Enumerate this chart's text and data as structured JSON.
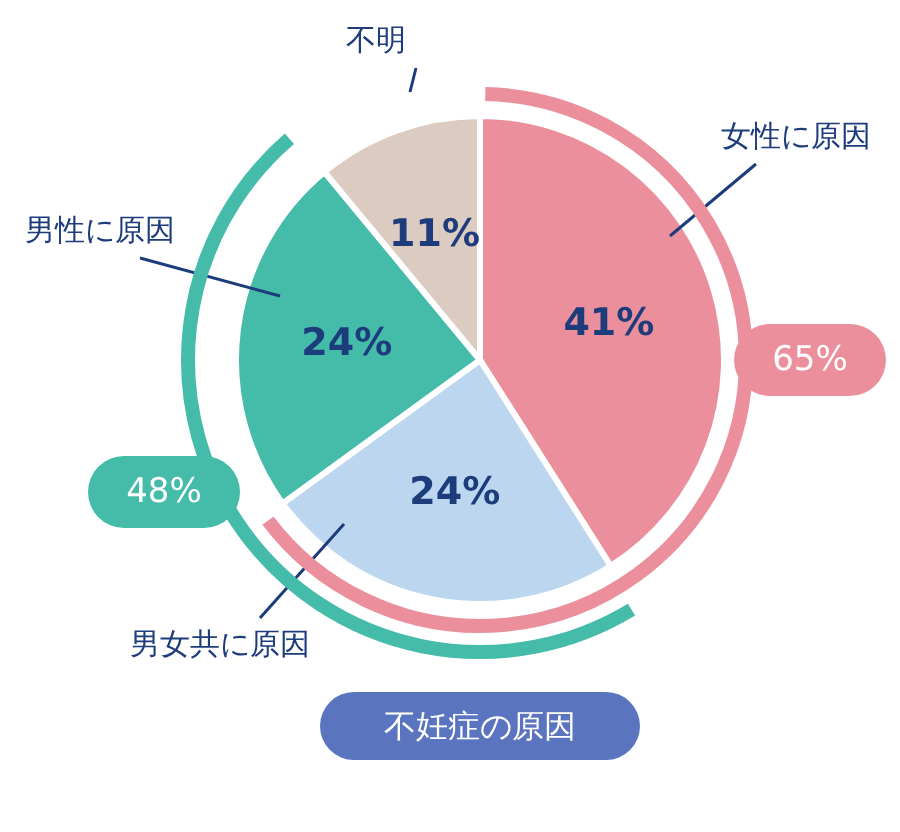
{
  "chart_data": {
    "type": "pie",
    "title": "不妊症の原因",
    "categories": [
      "女性に原因",
      "男女共に原因",
      "男性に原因",
      "不明"
    ],
    "values": [
      41,
      24,
      24,
      11
    ],
    "value_labels": [
      "41%",
      "24%",
      "24%",
      "11%"
    ],
    "colors": [
      "#ec8f9c",
      "#bcd6f0",
      "#45bba9",
      "#dccbc0"
    ],
    "annotations": [
      "65%",
      "48%"
    ],
    "legend": false
  }
}
